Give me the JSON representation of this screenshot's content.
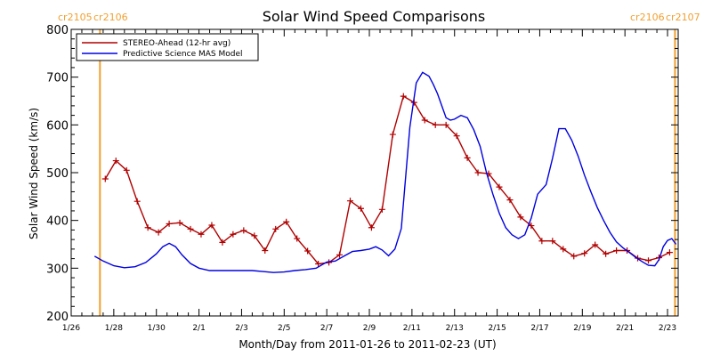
{
  "chart_data": {
    "type": "line",
    "title": "Solar Wind Speed Comparisons",
    "xlabel": "Month/Day from 2011-01-26 to 2011-02-23 (UT)",
    "ylabel": "Solar Wind Speed (km/s)",
    "xlim": [
      0,
      28.5
    ],
    "ylim": [
      200,
      800
    ],
    "x_tick_values": [
      0,
      2,
      4,
      6,
      8,
      10,
      12,
      14,
      16,
      18,
      20,
      22,
      24,
      26,
      28
    ],
    "x_tick_labels": [
      "1/26",
      "1/28",
      "1/30",
      "2/1",
      "2/3",
      "2/5",
      "2/7",
      "2/9",
      "2/11",
      "2/13",
      "2/15",
      "2/17",
      "2/19",
      "2/21",
      "2/23"
    ],
    "y_ticks": [
      200,
      300,
      400,
      500,
      600,
      700,
      800
    ],
    "legend_position": "top-left",
    "carrington_markers": [
      {
        "x": 1.35,
        "left_label": "cr2105",
        "right_label": "cr2106"
      },
      {
        "x": 28.35,
        "left_label": "cr2106",
        "right_label": "cr2107"
      }
    ],
    "series": [
      {
        "name": "STEREO-Ahead (12-hr avg)",
        "color": "#b00000",
        "marker": "plus",
        "x": [
          1.6,
          2.1,
          2.6,
          3.1,
          3.6,
          4.1,
          4.6,
          5.1,
          5.6,
          6.1,
          6.6,
          7.1,
          7.6,
          8.1,
          8.6,
          9.1,
          9.6,
          10.1,
          10.6,
          11.1,
          11.6,
          12.1,
          12.6,
          13.1,
          13.6,
          14.1,
          14.6,
          15.1,
          15.6,
          16.1,
          16.6,
          17.1,
          17.6,
          18.1,
          18.6,
          19.1,
          19.6,
          20.1,
          20.6,
          21.1,
          21.6,
          22.1,
          22.6,
          23.1,
          23.6,
          24.1,
          24.6,
          25.1,
          25.6,
          26.1,
          26.6,
          27.1,
          27.6,
          28.1
        ],
        "y": [
          487,
          525,
          505,
          440,
          385,
          375,
          393,
          395,
          382,
          371,
          390,
          354,
          371,
          379,
          368,
          337,
          382,
          397,
          362,
          336,
          309,
          312,
          328,
          441,
          425,
          385,
          423,
          580,
          660,
          647,
          610,
          600,
          600,
          577,
          531,
          500,
          498,
          470,
          443,
          407,
          389,
          357,
          357,
          340,
          325,
          331,
          349,
          330,
          337,
          337,
          321,
          316,
          322,
          333
        ]
      },
      {
        "name": "Predictive Science MAS Model",
        "color": "#0000e0",
        "x": [
          1.1,
          1.5,
          2.0,
          2.5,
          3.0,
          3.5,
          4.0,
          4.3,
          4.6,
          4.9,
          5.2,
          5.6,
          6.0,
          6.5,
          7.0,
          7.5,
          8.0,
          8.5,
          9.0,
          9.5,
          10.0,
          10.5,
          11.0,
          11.5,
          12.0,
          12.4,
          12.8,
          13.2,
          13.6,
          14.0,
          14.3,
          14.6,
          14.9,
          15.2,
          15.5,
          15.9,
          16.2,
          16.5,
          16.8,
          17.0,
          17.2,
          17.4,
          17.6,
          17.8,
          18.0,
          18.3,
          18.6,
          18.9,
          19.2,
          19.5,
          19.8,
          20.1,
          20.4,
          20.7,
          21.0,
          21.3,
          21.6,
          21.9,
          22.3,
          22.6,
          22.9,
          23.2,
          23.5,
          23.8,
          24.1,
          24.4,
          24.7,
          25.0,
          25.3,
          25.6,
          25.9,
          26.2,
          26.5,
          26.8,
          27.1,
          27.4,
          27.6,
          27.8,
          28.0,
          28.2,
          28.4
        ],
        "y": [
          325,
          315,
          305,
          301,
          303,
          312,
          330,
          345,
          352,
          345,
          328,
          310,
          300,
          295,
          295,
          295,
          295,
          295,
          293,
          291,
          292,
          295,
          297,
          300,
          313,
          315,
          325,
          335,
          337,
          340,
          345,
          338,
          326,
          340,
          383,
          595,
          688,
          710,
          702,
          685,
          665,
          640,
          615,
          610,
          612,
          620,
          615,
          590,
          555,
          500,
          455,
          415,
          385,
          370,
          362,
          370,
          405,
          455,
          475,
          530,
          592,
          592,
          568,
          535,
          495,
          460,
          427,
          400,
          375,
          355,
          343,
          333,
          323,
          314,
          306,
          305,
          318,
          345,
          358,
          362,
          350
        ]
      }
    ]
  }
}
